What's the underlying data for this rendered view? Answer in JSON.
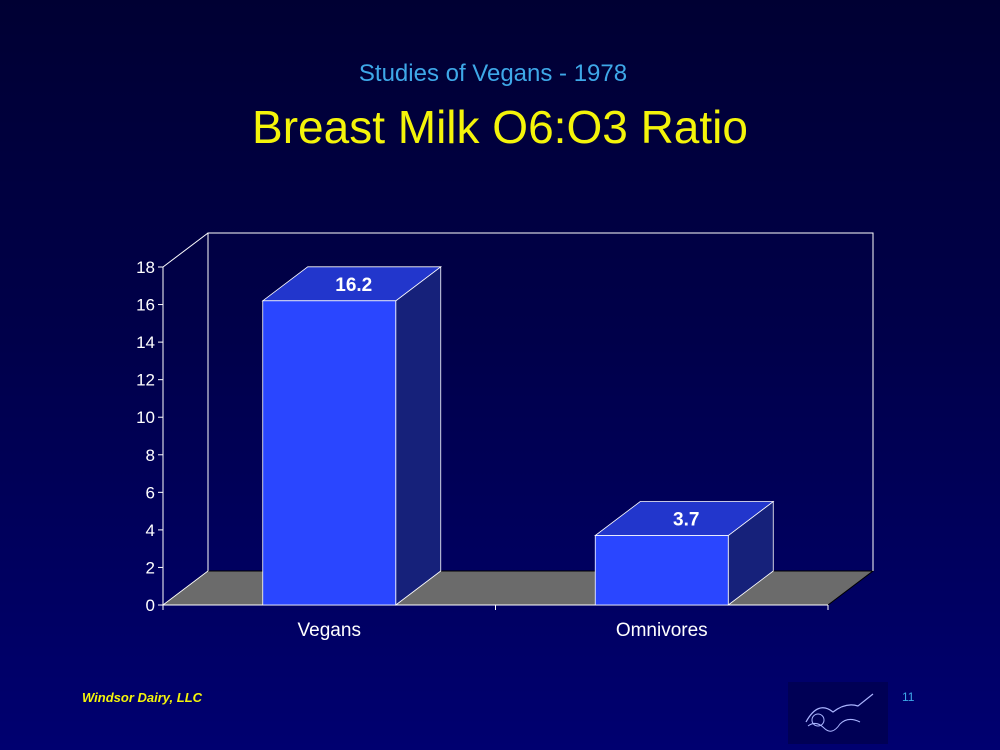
{
  "slide": {
    "subtitle": "Studies of Vegans - 1978",
    "title": "Breast Milk O6:O3 Ratio",
    "footer": "Windsor Dairy, LLC",
    "page_number": "11"
  },
  "colors": {
    "background": "#000048",
    "subtitle": "#3ea8e8",
    "title": "#f4f40a",
    "bar_front": "#2a46ff",
    "bar_side": "#16217a",
    "bar_top": "#2236cc",
    "floor": "#6b6b6b",
    "axis": "#ffffff"
  },
  "chart_data": {
    "type": "bar",
    "categories": [
      "Vegans",
      "Omnivores"
    ],
    "values": [
      16.2,
      3.7
    ],
    "data_labels": [
      "16.2",
      "3.7"
    ],
    "yticks": [
      "0",
      "2",
      "4",
      "6",
      "8",
      "10",
      "12",
      "14",
      "16",
      "18"
    ],
    "ylim": [
      0,
      18
    ],
    "xlabel": "",
    "ylabel": "",
    "legend": "none",
    "grid": false,
    "style": "3d"
  }
}
